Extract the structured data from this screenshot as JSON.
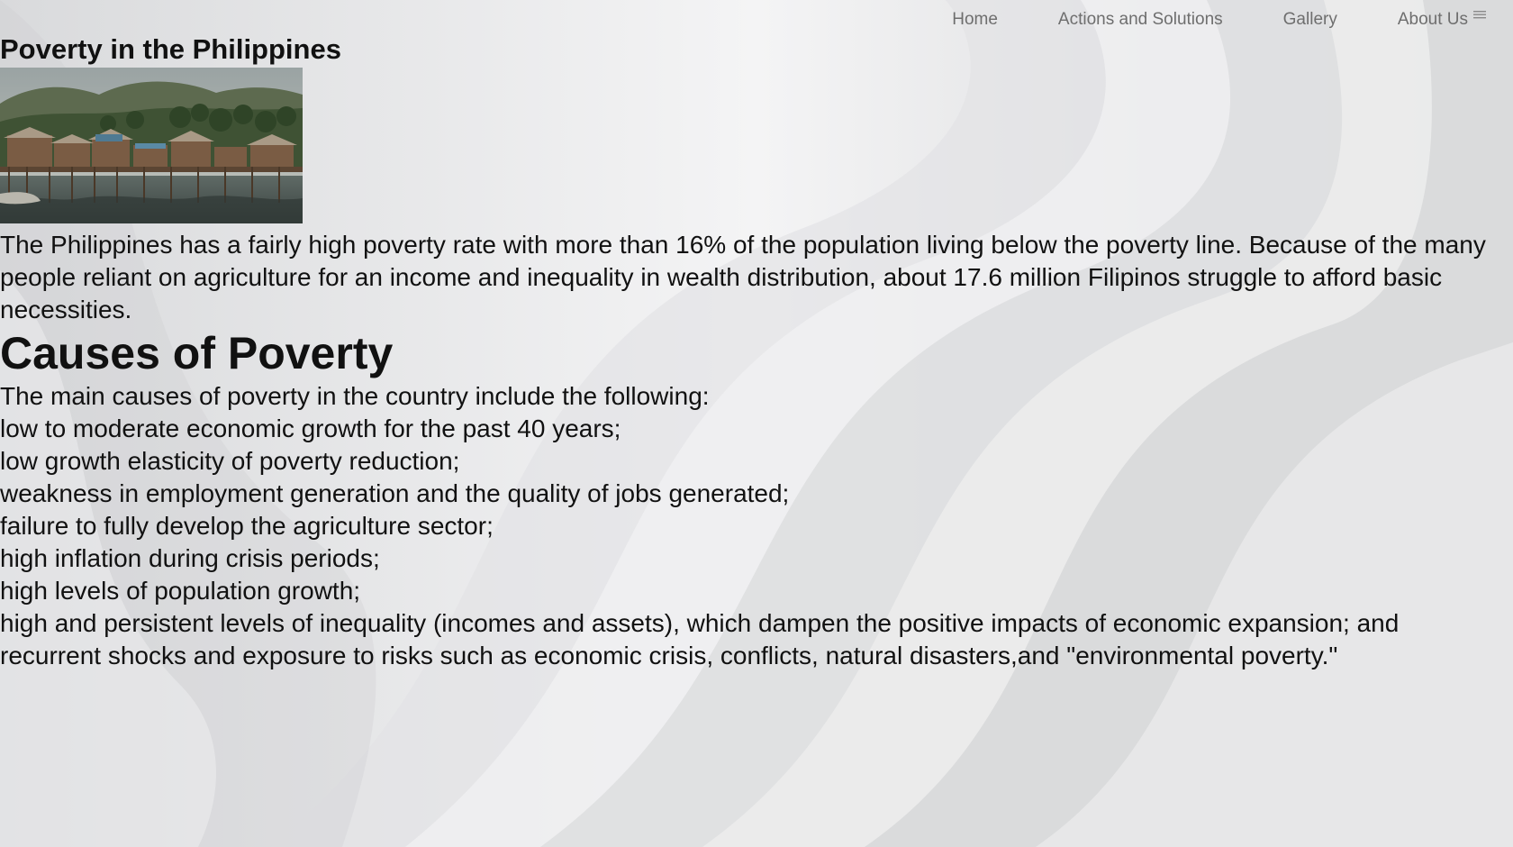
{
  "nav": {
    "items": [
      {
        "label": "Home"
      },
      {
        "label": "Actions and Solutions"
      },
      {
        "label": "Gallery"
      },
      {
        "label": "About Us"
      }
    ],
    "menu_icon": "menu-icon"
  },
  "header": {
    "title": "Poverty in the Philippines"
  },
  "intro": {
    "text": "The Philippines has a fairly high poverty rate with more than 16% of the population living below the poverty line. Because of the many people reliant on agriculture for an income and inequality in wealth distribution, about 17.6 million Filipinos struggle to afford basic necessities."
  },
  "causes": {
    "heading": "Causes of Poverty",
    "intro": "The main causes of poverty in the country include the following:",
    "items": [
      "low to moderate economic growth for the past 40 years;",
      "low growth elasticity of poverty reduction;",
      "weakness in employment generation and the quality of jobs generated;",
      "failure to fully develop the agriculture sector;",
      "high inflation during crisis periods;",
      "high levels of population growth;",
      "high and persistent levels of inequality (incomes and assets), which dampen the positive impacts of economic expansion; and",
      "recurrent shocks and exposure to risks such as economic crisis, conflicts, natural disasters,and \"environmental poverty.\""
    ]
  },
  "colors": {
    "background": "#e9eaeb",
    "text": "#111111",
    "nav_text": "#6e6e6e"
  }
}
